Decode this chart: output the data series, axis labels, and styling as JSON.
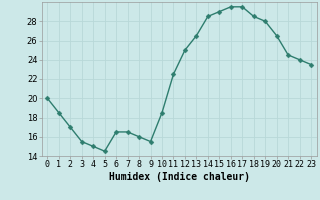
{
  "x": [
    0,
    1,
    2,
    3,
    4,
    5,
    6,
    7,
    8,
    9,
    10,
    11,
    12,
    13,
    14,
    15,
    16,
    17,
    18,
    19,
    20,
    21,
    22,
    23
  ],
  "y": [
    20,
    18.5,
    17,
    15.5,
    15,
    14.5,
    16.5,
    16.5,
    16,
    15.5,
    18.5,
    22.5,
    25,
    26.5,
    28.5,
    29,
    29.5,
    29.5,
    28.5,
    28,
    26.5,
    24.5,
    24,
    23.5
  ],
  "line_color": "#2e7d6e",
  "marker": "D",
  "marker_size": 2.5,
  "bg_color": "#cce8e8",
  "grid_color": "#b8d8d8",
  "xlabel": "Humidex (Indice chaleur)",
  "ylim": [
    14,
    30
  ],
  "yticks": [
    14,
    16,
    18,
    20,
    22,
    24,
    26,
    28
  ],
  "xticks": [
    0,
    1,
    2,
    3,
    4,
    5,
    6,
    7,
    8,
    9,
    10,
    11,
    12,
    13,
    14,
    15,
    16,
    17,
    18,
    19,
    20,
    21,
    22,
    23
  ],
  "xlabel_fontsize": 7,
  "tick_fontsize": 6,
  "line_width": 1.0
}
